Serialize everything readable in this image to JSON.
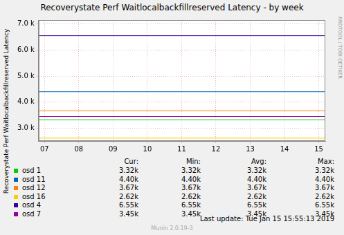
{
  "chart_data": {
    "type": "line",
    "title": "Recoverystate Perf Waitlocalbackfillreserved Latency - by week",
    "y_label": "Recoverystate Perf Waitlocalbackfillreserved Latency",
    "x": [
      6.83,
      15.19
    ],
    "series": [
      {
        "name": "osd 1",
        "color": "#00cc00",
        "values": [
          3320,
          3320
        ],
        "stats": [
          "3.32k",
          "3.32k",
          "3.32k",
          "3.32k"
        ]
      },
      {
        "name": "osd 11",
        "color": "#0066b3",
        "values": [
          4400,
          4400
        ],
        "stats": [
          "4.40k",
          "4.40k",
          "4.40k",
          "4.40k"
        ]
      },
      {
        "name": "osd 12",
        "color": "#ff8000",
        "values": [
          3670,
          3670
        ],
        "stats": [
          "3.67k",
          "3.67k",
          "3.67k",
          "3.67k"
        ]
      },
      {
        "name": "osd 16",
        "color": "#ffcc00",
        "values": [
          2620,
          2620
        ],
        "stats": [
          "2.62k",
          "2.62k",
          "2.62k",
          "2.62k"
        ]
      },
      {
        "name": "osd 4",
        "color": "#330099",
        "values": [
          6550,
          6550
        ],
        "stats": [
          "6.55k",
          "6.55k",
          "6.55k",
          "6.55k"
        ]
      },
      {
        "name": "osd 7",
        "color": "#990099",
        "values": [
          3450,
          3450
        ],
        "stats": [
          "3.45k",
          "3.45k",
          "3.45k",
          "3.45k"
        ]
      }
    ],
    "stats_columns": [
      "Cur:",
      "Min:",
      "Avg:",
      "Max:"
    ],
    "xlim": [
      6.83,
      15.19
    ],
    "xticks": [
      {
        "value": 7,
        "label": "07"
      },
      {
        "value": 8,
        "label": "08"
      },
      {
        "value": 9,
        "label": "09"
      },
      {
        "value": 10,
        "label": "10"
      },
      {
        "value": 11,
        "label": "11"
      },
      {
        "value": 12,
        "label": "12"
      },
      {
        "value": 13,
        "label": "13"
      },
      {
        "value": 14,
        "label": "14"
      },
      {
        "value": 15,
        "label": "15"
      }
    ],
    "ylim": [
      2510,
      7150
    ],
    "yticks": [
      {
        "value": 3000,
        "label": "3.0 k"
      },
      {
        "value": 4000,
        "label": "4.0 k"
      },
      {
        "value": 5000,
        "label": "5.0 k"
      },
      {
        "value": 6000,
        "label": "6.0 k"
      },
      {
        "value": 7000,
        "label": "7.0 k"
      }
    ],
    "grid": true,
    "last_update": "Last update:  Tue Jan 15 15:55:13 2019",
    "footer": "Munin 2.0.19-3",
    "watermark": "RRDTOOL / TOBI OETIKER"
  }
}
